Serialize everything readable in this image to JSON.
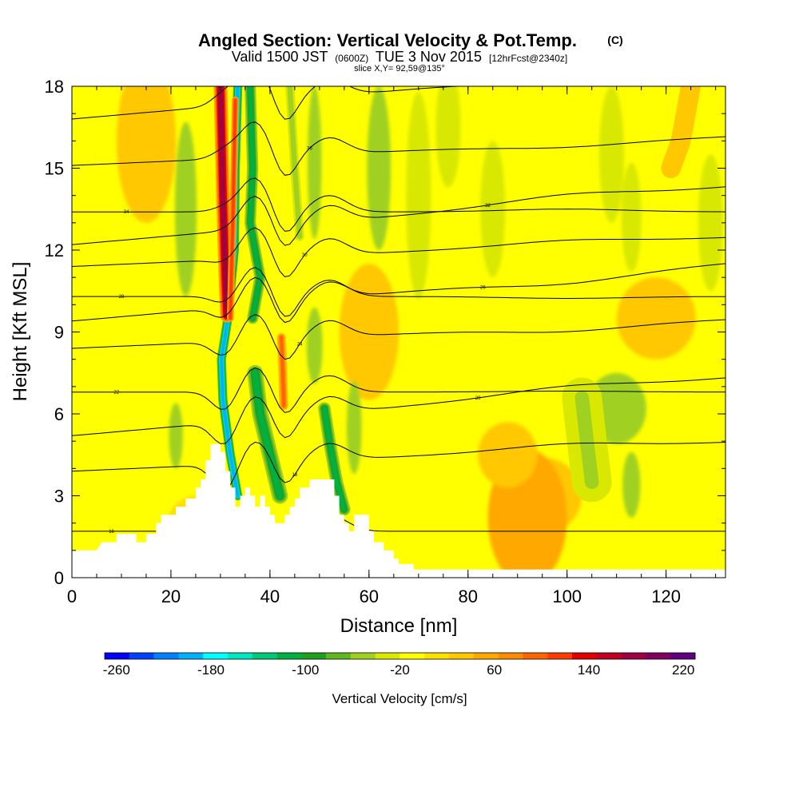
{
  "chart_data": {
    "type": "heatmap",
    "title": "Angled Section: Vertical Velocity & Pot.Temp.",
    "title_suffix": "(C)",
    "subtitle_main": "Valid 1500 JST",
    "subtitle_zulu": "(0600Z)",
    "subtitle_date": "TUE 3 Nov 2015",
    "subtitle_forecast": "[12hrFcst@2340z]",
    "slice_label": "slice X,Y= 92,59@135°",
    "xlabel": "Distance [nm]",
    "ylabel": "Height [Kft MSL]",
    "xlim": [
      0,
      132
    ],
    "ylim": [
      0,
      18
    ],
    "x_ticks": [
      "0",
      "20",
      "40",
      "60",
      "80",
      "100",
      "120"
    ],
    "y_ticks": [
      "0",
      "3",
      "6",
      "9",
      "12",
      "15",
      "18"
    ],
    "grid": false,
    "colorbar": {
      "label": "Vertical Velocity [cm/s]",
      "min": -270,
      "max": 230,
      "tick_values": [
        -260,
        -180,
        -100,
        -20,
        60,
        140,
        220
      ],
      "tick_labels": [
        "-260",
        "-180",
        "-100",
        "-20",
        "60",
        "140",
        "220"
      ],
      "colors": [
        "#0000ff",
        "#0040ff",
        "#0080ff",
        "#00b0ff",
        "#00ffff",
        "#00e6c0",
        "#00c878",
        "#00b040",
        "#20a020",
        "#60b820",
        "#a0d020",
        "#d8e800",
        "#ffff00",
        "#ffe000",
        "#ffc800",
        "#ffa800",
        "#ff8c00",
        "#ff6400",
        "#ff3c00",
        "#e00000",
        "#c00020",
        "#a00040",
        "#800060",
        "#600080"
      ]
    },
    "terrain_kft": [
      [
        0,
        1.0
      ],
      [
        5,
        1.0
      ],
      [
        6,
        1.3
      ],
      [
        9,
        1.3
      ],
      [
        9,
        1.6
      ],
      [
        13,
        1.6
      ],
      [
        13,
        1.3
      ],
      [
        15,
        1.3
      ],
      [
        15,
        1.6
      ],
      [
        17,
        1.6
      ],
      [
        17,
        2.0
      ],
      [
        18,
        2.0
      ],
      [
        18,
        2.3
      ],
      [
        21,
        2.3
      ],
      [
        21,
        2.6
      ],
      [
        23,
        2.6
      ],
      [
        23,
        2.9
      ],
      [
        25,
        2.9
      ],
      [
        25,
        3.3
      ],
      [
        26,
        3.3
      ],
      [
        26,
        3.6
      ],
      [
        27,
        3.6
      ],
      [
        27,
        4.3
      ],
      [
        28,
        4.3
      ],
      [
        28,
        4.9
      ],
      [
        30,
        4.9
      ],
      [
        30,
        4.6
      ],
      [
        31,
        4.6
      ],
      [
        31,
        3.9
      ],
      [
        32,
        3.9
      ],
      [
        32,
        3.3
      ],
      [
        33,
        3.3
      ],
      [
        33,
        2.6
      ],
      [
        34,
        2.6
      ],
      [
        34,
        3.0
      ],
      [
        35,
        3.0
      ],
      [
        35,
        3.3
      ],
      [
        36,
        3.3
      ],
      [
        36,
        3.0
      ],
      [
        37,
        3.0
      ],
      [
        37,
        2.6
      ],
      [
        38,
        2.6
      ],
      [
        38,
        3.0
      ],
      [
        39,
        3.0
      ],
      [
        39,
        2.6
      ],
      [
        40,
        2.6
      ],
      [
        40,
        2.3
      ],
      [
        41,
        2.3
      ],
      [
        41,
        2.0
      ],
      [
        43,
        2.0
      ],
      [
        43,
        2.3
      ],
      [
        44,
        2.3
      ],
      [
        44,
        2.6
      ],
      [
        45,
        2.6
      ],
      [
        45,
        2.9
      ],
      [
        46,
        2.9
      ],
      [
        46,
        3.3
      ],
      [
        48,
        3.3
      ],
      [
        48,
        3.6
      ],
      [
        53,
        3.6
      ],
      [
        53,
        3.0
      ],
      [
        54,
        3.0
      ],
      [
        54,
        2.3
      ],
      [
        55,
        2.3
      ],
      [
        55,
        2.0
      ],
      [
        56,
        2.0
      ],
      [
        56,
        1.7
      ],
      [
        57,
        1.7
      ],
      [
        57,
        2.3
      ],
      [
        60,
        2.3
      ],
      [
        60,
        1.7
      ],
      [
        61,
        1.7
      ],
      [
        61,
        1.3
      ],
      [
        63,
        1.3
      ],
      [
        63,
        1.0
      ],
      [
        65,
        1.0
      ],
      [
        65,
        0.7
      ],
      [
        66,
        0.7
      ],
      [
        66,
        0.5
      ],
      [
        69,
        0.5
      ],
      [
        69,
        0.3
      ],
      [
        132,
        0.3
      ]
    ],
    "updraft_bands": [
      {
        "name": "strong-updraft-main",
        "w": 170,
        "points": [
          [
            30,
            18
          ],
          [
            30.5,
            14
          ],
          [
            31,
            11
          ],
          [
            31.3,
            9.6
          ]
        ],
        "width_nm": 2.4
      },
      {
        "name": "updraft-secondary",
        "w": 110,
        "points": [
          [
            33,
            17.5
          ],
          [
            32.5,
            13
          ],
          [
            32.2,
            11
          ],
          [
            32,
            9.5
          ]
        ],
        "width_nm": 1.2
      },
      {
        "name": "updraft-mid",
        "w": 95,
        "points": [
          [
            42.3,
            8.8
          ],
          [
            42.6,
            7.5
          ],
          [
            42.8,
            6.3
          ]
        ],
        "width_nm": 1.6
      },
      {
        "name": "updraft-right",
        "w": 40,
        "points": [
          [
            125,
            18
          ],
          [
            123,
            16
          ],
          [
            121,
            15
          ]
        ],
        "width_nm": 3.5
      }
    ],
    "downdraft_bands": [
      {
        "name": "strong-downdraft-main",
        "w": -200,
        "points": [
          [
            33.5,
            18
          ],
          [
            33,
            15
          ],
          [
            32.8,
            12
          ],
          [
            31.5,
            9.5
          ],
          [
            30.2,
            8
          ],
          [
            30.5,
            6.5
          ],
          [
            32,
            4.5
          ],
          [
            33.5,
            3
          ]
        ],
        "width_nm": 1.6
      },
      {
        "name": "downdraft-upper",
        "w": -110,
        "points": [
          [
            36,
            18
          ],
          [
            36.5,
            15
          ],
          [
            36,
            13
          ],
          [
            38,
            11
          ],
          [
            36.5,
            9.5
          ]
        ],
        "width_nm": 2.0
      },
      {
        "name": "downdraft-lower",
        "w": -120,
        "points": [
          [
            37,
            7.5
          ],
          [
            38,
            6
          ],
          [
            40,
            4.5
          ],
          [
            42,
            3
          ]
        ],
        "width_nm": 2.8
      },
      {
        "name": "downdraft-far",
        "w": -110,
        "points": [
          [
            51,
            6.2
          ],
          [
            52,
            5
          ],
          [
            53.5,
            3.5
          ],
          [
            55,
            2.5
          ]
        ],
        "width_nm": 2.2
      },
      {
        "name": "downdraft-upper-right",
        "w": -50,
        "points": [
          [
            44,
            18
          ],
          [
            45,
            15
          ],
          [
            46,
            12.5
          ]
        ],
        "width_nm": 1.6
      },
      {
        "name": "downdraft-center",
        "w": -45,
        "points": [
          [
            103,
            6.6
          ],
          [
            104,
            5
          ],
          [
            105,
            3.5
          ]
        ],
        "width_nm": 7
      }
    ],
    "theta_contours": [
      {
        "label": "16",
        "y0": 1.7,
        "level": 1
      },
      {
        "label": "18",
        "y0": 3.9,
        "level": 2
      },
      {
        "label": "20",
        "y0": 5.2,
        "level": 3
      },
      {
        "label": "22",
        "y0": 6.8,
        "level": 4
      },
      {
        "label": "24",
        "y0": 8.4,
        "level": 5
      },
      {
        "label": "26",
        "y0": 9.4,
        "level": 6
      },
      {
        "label": "28",
        "y0": 10.3,
        "level": 7
      },
      {
        "label": "30",
        "y0": 11.4,
        "level": 8
      },
      {
        "label": "32",
        "y0": 12.2,
        "level": 9
      },
      {
        "label": "34",
        "y0": 13.4,
        "level": 10
      },
      {
        "label": "36",
        "y0": 15.1,
        "level": 11
      },
      {
        "label": "38",
        "y0": 16.8,
        "level": 12
      }
    ]
  }
}
